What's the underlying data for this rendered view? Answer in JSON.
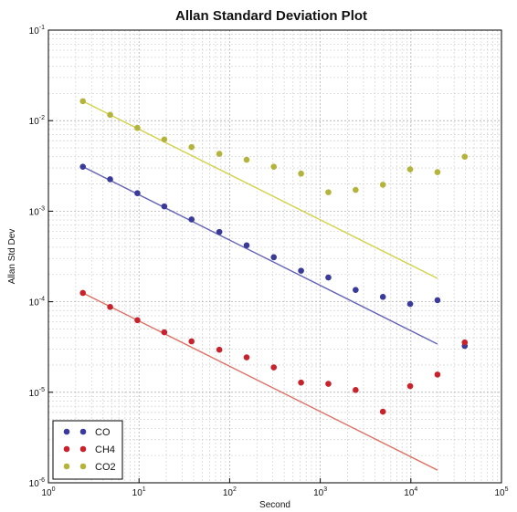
{
  "chart_data": {
    "type": "scatter",
    "title": "Allan Standard Deviation Plot",
    "xlabel": "Second",
    "ylabel": "Allan Std Dev",
    "x_scale": "log",
    "y_scale": "log",
    "xlim": [
      1,
      100000
    ],
    "ylim": [
      1e-06,
      0.1
    ],
    "grid": true,
    "legend_position": "bottom-left",
    "x_ticks": [
      {
        "value": 1,
        "base": "10",
        "exp": "0"
      },
      {
        "value": 10,
        "base": "10",
        "exp": "1"
      },
      {
        "value": 100,
        "base": "10",
        "exp": "2"
      },
      {
        "value": 1000,
        "base": "10",
        "exp": "3"
      },
      {
        "value": 10000,
        "base": "10",
        "exp": "4"
      },
      {
        "value": 100000,
        "base": "10",
        "exp": "5"
      }
    ],
    "y_ticks": [
      {
        "value": 1e-06,
        "base": "10",
        "exp": "-6"
      },
      {
        "value": 1e-05,
        "base": "10",
        "exp": "-5"
      },
      {
        "value": 0.0001,
        "base": "10",
        "exp": "-4"
      },
      {
        "value": 0.001,
        "base": "10",
        "exp": "-3"
      },
      {
        "value": 0.01,
        "base": "10",
        "exp": "-2"
      },
      {
        "value": 0.1,
        "base": "10",
        "exp": "-1"
      }
    ],
    "series": [
      {
        "name": "CO",
        "color": "#3a3a9a",
        "x": [
          2.4,
          4.8,
          9.6,
          19,
          38,
          77,
          154,
          307,
          614,
          1229,
          2458,
          4915,
          9830,
          19660,
          39320
        ],
        "y": [
          0.0031,
          0.00225,
          0.00158,
          0.00113,
          0.00081,
          0.00059,
          0.00042,
          0.00031,
          0.00022,
          0.000185,
          0.000135,
          0.000113,
          9.45e-05,
          0.000104,
          3.25e-05
        ],
        "fit": {
          "x": [
            2.4,
            19660
          ],
          "y": [
            0.0031,
            3.41e-05
          ],
          "color": "#6464b4"
        }
      },
      {
        "name": "CH4",
        "color": "#c8232d",
        "x": [
          2.4,
          4.8,
          9.6,
          19,
          38,
          77,
          154,
          307,
          614,
          1229,
          2458,
          4915,
          9830,
          19660,
          39320
        ],
        "y": [
          0.000125,
          8.75e-05,
          6.25e-05,
          4.6e-05,
          3.65e-05,
          2.95e-05,
          2.43e-05,
          1.88e-05,
          1.28e-05,
          1.24e-05,
          1.06e-05,
          6.1e-06,
          1.17e-05,
          1.57e-05,
          3.55e-05
        ],
        "fit": {
          "x": [
            2.4,
            19660
          ],
          "y": [
            0.000125,
            1.38e-06
          ],
          "color": "#e06e5f"
        }
      },
      {
        "name": "CO2",
        "color": "#b4b43c",
        "x": [
          2.4,
          4.8,
          9.6,
          19,
          38,
          77,
          154,
          307,
          614,
          1229,
          2458,
          4915,
          9830,
          19660,
          39320
        ],
        "y": [
          0.0164,
          0.0116,
          0.0083,
          0.0062,
          0.0051,
          0.0043,
          0.0037,
          0.0031,
          0.0026,
          0.00162,
          0.00172,
          0.00196,
          0.0029,
          0.0027,
          0.004
        ],
        "fit": {
          "x": [
            2.4,
            19660
          ],
          "y": [
            0.0164,
            0.000181
          ],
          "color": "#d2d250"
        }
      }
    ]
  }
}
